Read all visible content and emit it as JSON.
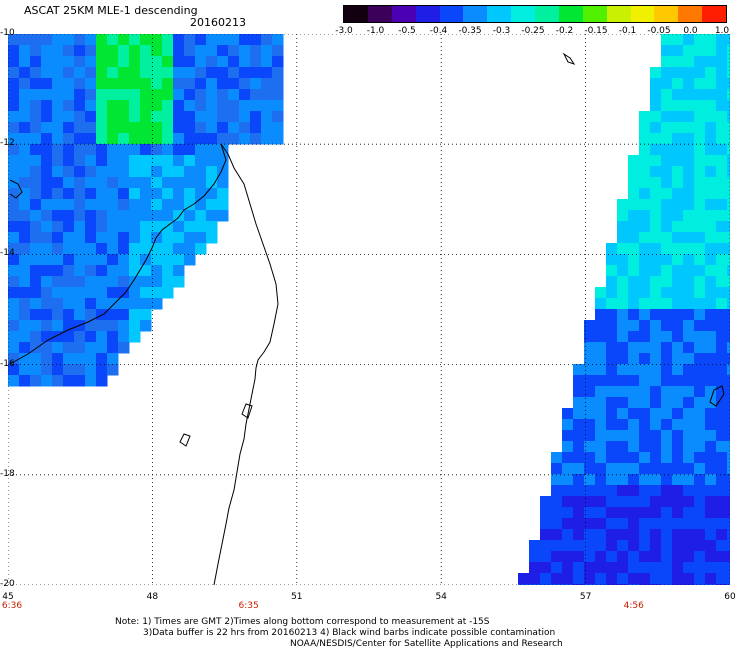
{
  "header": {
    "title": "ASCAT 25KM MLE-1 descending",
    "date": "20160213"
  },
  "colorbar": {
    "labels": [
      "-3.0",
      "-1.0",
      "-0.5",
      "-0.4",
      "-0.35",
      "-0.3",
      "-0.25",
      "-0.2",
      "-0.15",
      "-0.1",
      "-0.05",
      "0.0",
      "1.0"
    ],
    "colors": [
      "#120010",
      "#3a005a",
      "#4b00b4",
      "#1e1ee6",
      "#0a46fa",
      "#0a8cff",
      "#00c8ff",
      "#00eee0",
      "#00f0a0",
      "#00e632",
      "#50f000",
      "#c8f000",
      "#f0f000",
      "#ffc800",
      "#ff7800",
      "#ff1e00"
    ]
  },
  "axes": {
    "lat_labels": [
      "-10",
      "-12",
      "-14",
      "-16",
      "-18",
      "-20"
    ],
    "lon_labels": [
      "45",
      "48",
      "51",
      "54",
      "57",
      "60"
    ],
    "time_labels": [
      "6:36",
      "6:35",
      "4:56"
    ]
  },
  "map": {
    "lat_range": [
      -20,
      -10
    ],
    "lon_range": [
      45,
      60
    ],
    "land_outline": "Madagascar northern coast",
    "swaths": [
      "west swath 45-50.6E",
      "east swath 56.2-60E"
    ]
  },
  "notes": {
    "line1": "Note: 1) Times are GMT  2)Times along bottom correspond to measurement at -15S",
    "line2": "3)Data buffer is 22 hrs from 20160213  4) Black wind barbs indicate possible contamination",
    "line3": "NOAA/NESDIS/Center for Satellite Applications and Research"
  }
}
